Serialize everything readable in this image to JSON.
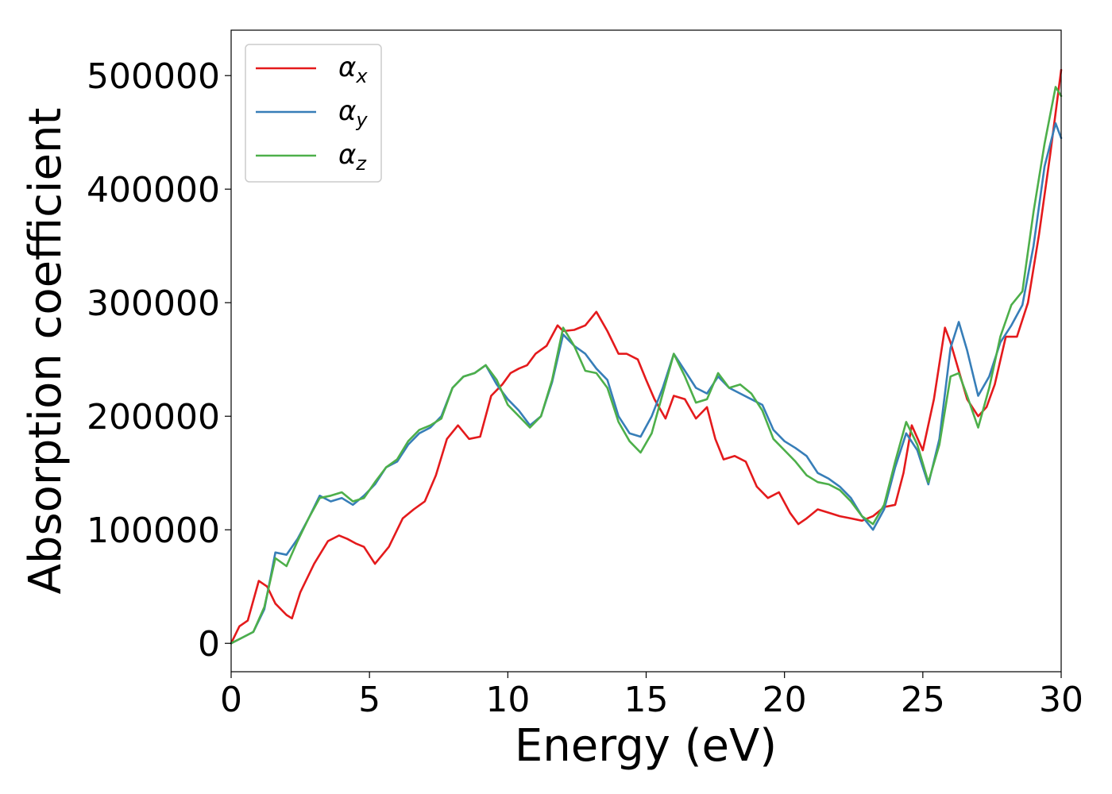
{
  "chart_data": {
    "type": "line",
    "xlabel": "Energy (eV)",
    "ylabel": "Absorption coefficient",
    "xlim": [
      0,
      30
    ],
    "ylim": [
      -25000,
      540000
    ],
    "xticks": [
      0,
      5,
      10,
      15,
      20,
      25,
      30
    ],
    "yticks": [
      0,
      100000,
      200000,
      300000,
      400000,
      500000
    ],
    "grid": false,
    "legend_position": "top-left",
    "series": [
      {
        "symbol": "α",
        "subscript": "x",
        "color": "#e41a1c",
        "x": [
          0,
          0.3,
          0.6,
          1.0,
          1.3,
          1.6,
          2.0,
          2.2,
          2.5,
          3.0,
          3.5,
          3.9,
          4.2,
          4.5,
          4.8,
          5.2,
          5.7,
          6.2,
          6.6,
          7.0,
          7.4,
          7.8,
          8.2,
          8.6,
          9.0,
          9.4,
          9.8,
          10.1,
          10.4,
          10.7,
          11.0,
          11.4,
          11.8,
          12.0,
          12.4,
          12.8,
          13.2,
          13.6,
          14.0,
          14.3,
          14.7,
          15.0,
          15.3,
          15.7,
          16.0,
          16.4,
          16.8,
          17.2,
          17.5,
          17.8,
          18.2,
          18.6,
          19.0,
          19.4,
          19.8,
          20.2,
          20.5,
          20.8,
          21.2,
          21.6,
          22.0,
          22.4,
          22.8,
          23.2,
          23.6,
          24.0,
          24.3,
          24.6,
          25.0,
          25.4,
          25.8,
          26.0,
          26.3,
          26.6,
          27.0,
          27.3,
          27.6,
          28.0,
          28.4,
          28.8,
          29.2,
          29.6,
          30.0
        ],
        "values": [
          0,
          15000,
          20000,
          55000,
          50000,
          35000,
          25000,
          22000,
          45000,
          70000,
          90000,
          95000,
          92000,
          88000,
          85000,
          70000,
          85000,
          110000,
          118000,
          125000,
          148000,
          180000,
          192000,
          180000,
          182000,
          218000,
          228000,
          238000,
          242000,
          245000,
          255000,
          262000,
          280000,
          275000,
          276000,
          280000,
          292000,
          275000,
          255000,
          255000,
          250000,
          232000,
          215000,
          198000,
          218000,
          215000,
          198000,
          208000,
          180000,
          162000,
          165000,
          160000,
          138000,
          128000,
          133000,
          115000,
          105000,
          110000,
          118000,
          115000,
          112000,
          110000,
          108000,
          112000,
          120000,
          122000,
          150000,
          192000,
          170000,
          215000,
          278000,
          265000,
          240000,
          215000,
          200000,
          208000,
          228000,
          270000,
          270000,
          300000,
          360000,
          430000,
          505000
        ]
      },
      {
        "symbol": "α",
        "subscript": "y",
        "color": "#377eb8",
        "x": [
          0,
          0.4,
          0.8,
          1.2,
          1.6,
          2.0,
          2.4,
          2.8,
          3.2,
          3.6,
          4.0,
          4.4,
          4.8,
          5.2,
          5.6,
          6.0,
          6.4,
          6.8,
          7.2,
          7.6,
          8.0,
          8.4,
          8.8,
          9.2,
          9.6,
          10.0,
          10.4,
          10.8,
          11.2,
          11.6,
          12.0,
          12.4,
          12.8,
          13.2,
          13.6,
          14.0,
          14.4,
          14.8,
          15.2,
          15.6,
          16.0,
          16.4,
          16.8,
          17.2,
          17.6,
          18.0,
          18.4,
          18.8,
          19.2,
          19.6,
          20.0,
          20.4,
          20.8,
          21.2,
          21.6,
          22.0,
          22.4,
          22.8,
          23.2,
          23.6,
          24.0,
          24.4,
          24.8,
          25.2,
          25.6,
          26.0,
          26.3,
          26.6,
          27.0,
          27.4,
          27.8,
          28.2,
          28.6,
          29.0,
          29.4,
          29.8,
          30.0
        ],
        "values": [
          0,
          5000,
          10000,
          30000,
          80000,
          78000,
          92000,
          110000,
          130000,
          125000,
          128000,
          122000,
          130000,
          140000,
          155000,
          160000,
          175000,
          185000,
          190000,
          200000,
          225000,
          235000,
          238000,
          245000,
          228000,
          215000,
          205000,
          192000,
          200000,
          230000,
          272000,
          262000,
          255000,
          242000,
          232000,
          200000,
          185000,
          182000,
          200000,
          225000,
          255000,
          240000,
          225000,
          220000,
          235000,
          225000,
          220000,
          215000,
          210000,
          188000,
          178000,
          172000,
          165000,
          150000,
          145000,
          138000,
          128000,
          112000,
          100000,
          118000,
          155000,
          185000,
          170000,
          140000,
          180000,
          260000,
          283000,
          258000,
          218000,
          235000,
          265000,
          280000,
          298000,
          350000,
          420000,
          458000,
          445000
        ]
      },
      {
        "symbol": "α",
        "subscript": "z",
        "color": "#4daf4a",
        "x": [
          0,
          0.4,
          0.8,
          1.2,
          1.6,
          2.0,
          2.4,
          2.8,
          3.2,
          3.6,
          4.0,
          4.4,
          4.8,
          5.2,
          5.6,
          6.0,
          6.4,
          6.8,
          7.2,
          7.6,
          8.0,
          8.4,
          8.8,
          9.2,
          9.6,
          10.0,
          10.4,
          10.8,
          11.2,
          11.6,
          12.0,
          12.4,
          12.8,
          13.2,
          13.6,
          14.0,
          14.4,
          14.8,
          15.2,
          15.6,
          16.0,
          16.4,
          16.8,
          17.2,
          17.6,
          18.0,
          18.4,
          18.8,
          19.2,
          19.6,
          20.0,
          20.4,
          20.8,
          21.2,
          21.6,
          22.0,
          22.4,
          22.8,
          23.2,
          23.6,
          24.0,
          24.4,
          24.8,
          25.2,
          25.6,
          26.0,
          26.3,
          26.6,
          27.0,
          27.4,
          27.8,
          28.2,
          28.6,
          29.0,
          29.4,
          29.8,
          30.0
        ],
        "values": [
          0,
          5000,
          10000,
          32000,
          75000,
          68000,
          90000,
          110000,
          128000,
          130000,
          133000,
          125000,
          128000,
          142000,
          155000,
          162000,
          178000,
          188000,
          192000,
          198000,
          225000,
          235000,
          238000,
          245000,
          232000,
          210000,
          200000,
          190000,
          200000,
          232000,
          278000,
          262000,
          240000,
          238000,
          225000,
          195000,
          178000,
          168000,
          185000,
          220000,
          255000,
          235000,
          212000,
          215000,
          238000,
          225000,
          228000,
          220000,
          205000,
          180000,
          170000,
          160000,
          148000,
          142000,
          140000,
          135000,
          125000,
          112000,
          105000,
          122000,
          160000,
          195000,
          175000,
          142000,
          175000,
          235000,
          238000,
          218000,
          190000,
          225000,
          270000,
          298000,
          310000,
          380000,
          440000,
          490000,
          482000
        ]
      }
    ]
  }
}
